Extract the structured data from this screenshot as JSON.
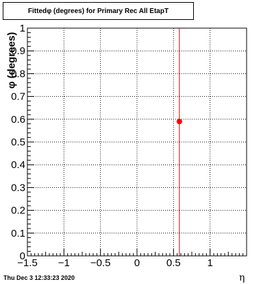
{
  "chart_data": {
    "type": "scatter",
    "title": "Fittedφ (degrees) for Primary Rec All EtapT",
    "xlabel": "η",
    "ylabel": "φ (degrees)",
    "xlim": [
      -1.5,
      1.5
    ],
    "ylim": [
      0,
      1
    ],
    "xticks": [
      {
        "value": -1.5,
        "label": "−1.5"
      },
      {
        "value": -1,
        "label": "−1"
      },
      {
        "value": -0.5,
        "label": "−0.5"
      },
      {
        "value": 0,
        "label": "0"
      },
      {
        "value": 0.5,
        "label": "0.5"
      },
      {
        "value": 1,
        "label": "1"
      }
    ],
    "yticks": [
      {
        "value": 0,
        "label": "0"
      },
      {
        "value": 0.1,
        "label": "0.1"
      },
      {
        "value": 0.2,
        "label": "0.2"
      },
      {
        "value": 0.3,
        "label": "0.3"
      },
      {
        "value": 0.4,
        "label": "0.4"
      },
      {
        "value": 0.5,
        "label": "0.5"
      },
      {
        "value": 0.6,
        "label": "0.6"
      },
      {
        "value": 0.7,
        "label": "0.7"
      },
      {
        "value": 0.8,
        "label": "0.8"
      },
      {
        "value": 0.9,
        "label": "0.9"
      },
      {
        "value": 1,
        "label": "1"
      }
    ],
    "grid": true,
    "points": [
      {
        "x": 0.58,
        "y": 0.59
      }
    ],
    "vline_x": 0.58,
    "marker_color": "#ff0000",
    "line_color": "#cc0000"
  },
  "footer": {
    "timestamp": "Thu Dec  3 12:33:23 2020"
  }
}
